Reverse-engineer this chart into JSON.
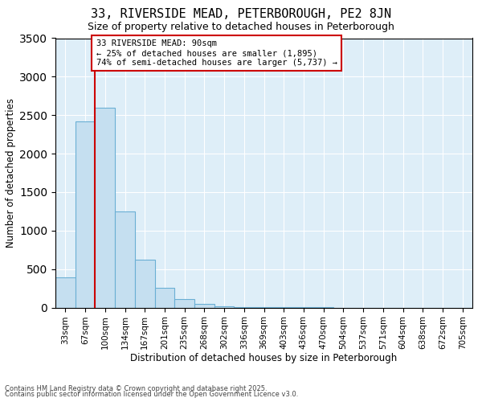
{
  "title1": "33, RIVERSIDE MEAD, PETERBOROUGH, PE2 8JN",
  "title2": "Size of property relative to detached houses in Peterborough",
  "xlabel": "Distribution of detached houses by size in Peterborough",
  "ylabel": "Number of detached properties",
  "categories": [
    "33sqm",
    "67sqm",
    "100sqm",
    "134sqm",
    "167sqm",
    "201sqm",
    "235sqm",
    "268sqm",
    "302sqm",
    "336sqm",
    "369sqm",
    "403sqm",
    "436sqm",
    "470sqm",
    "504sqm",
    "537sqm",
    "571sqm",
    "604sqm",
    "638sqm",
    "672sqm",
    "705sqm"
  ],
  "values": [
    390,
    2420,
    2600,
    1250,
    625,
    255,
    110,
    50,
    20,
    8,
    4,
    2,
    1,
    1,
    0,
    0,
    0,
    0,
    0,
    0,
    0
  ],
  "bar_color": "#c5dff0",
  "bar_edge_color": "#6aafd4",
  "vline_x_index": 2.0,
  "vline_color": "#cc0000",
  "annotation_title": "33 RIVERSIDE MEAD: 90sqm",
  "annotation_line1": "← 25% of detached houses are smaller (1,895)",
  "annotation_line2": "74% of semi-detached houses are larger (5,737) →",
  "annotation_box_color": "#cc0000",
  "ylim": [
    0,
    3500
  ],
  "yticks": [
    0,
    500,
    1000,
    1500,
    2000,
    2500,
    3000,
    3500
  ],
  "footnote1": "Contains HM Land Registry data © Crown copyright and database right 2025.",
  "footnote2": "Contains public sector information licensed under the Open Government Licence v3.0.",
  "plot_bg_color": "#deeef8",
  "title1_fontsize": 11,
  "title2_fontsize": 9,
  "xlabel_fontsize": 8.5,
  "ylabel_fontsize": 8.5,
  "tick_fontsize": 7.5,
  "annotation_fontsize": 7.5
}
